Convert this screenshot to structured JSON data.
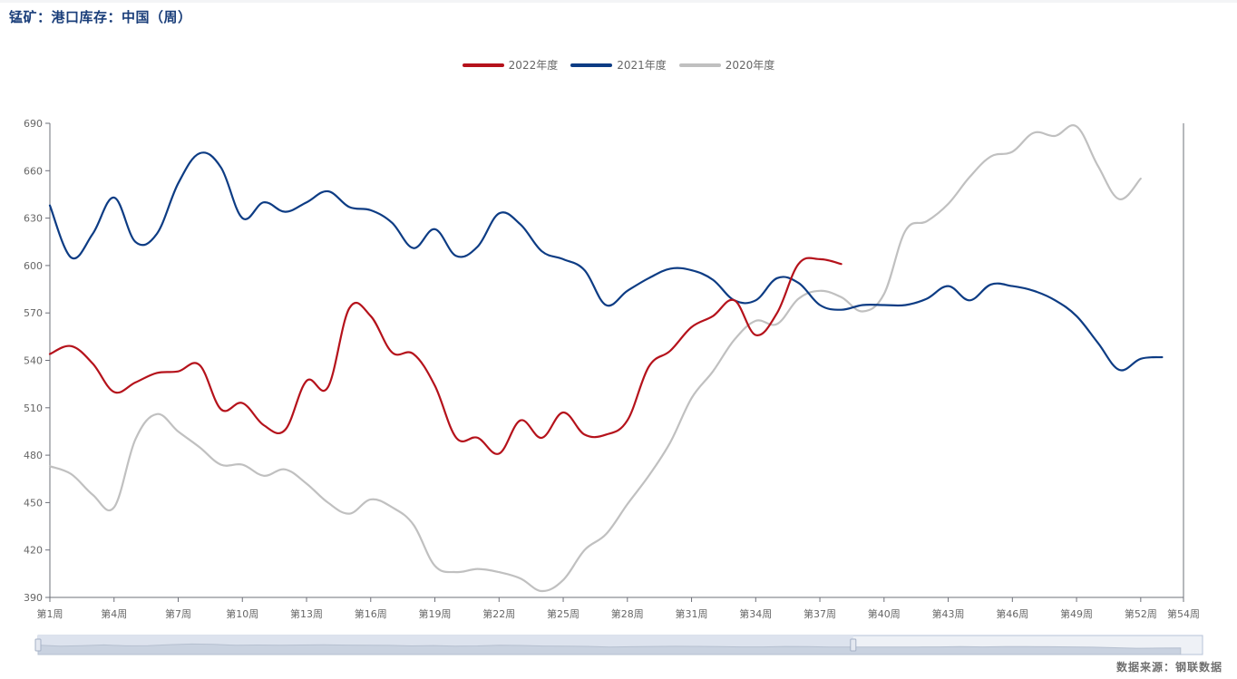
{
  "title": "锰矿：港口库存：中国（周）",
  "source": "数据来源：钢联数据",
  "colors": {
    "s2022": "#b5121b",
    "s2021": "#0d3c84",
    "s2020": "#c0c0c0",
    "axis": "#6e7079",
    "slider_bg": "#dde3ee",
    "slider_border": "#b7c3d8"
  },
  "legend": [
    {
      "name": "2022年度",
      "color": "#b5121b"
    },
    {
      "name": "2021年度",
      "color": "#0d3c84"
    },
    {
      "name": "2020年度",
      "color": "#c0c0c0"
    }
  ],
  "chart_data": {
    "type": "line",
    "x_range": [
      1,
      54
    ],
    "x_ticks": [
      {
        "x": 1,
        "label": "第1周"
      },
      {
        "x": 4,
        "label": "第4周"
      },
      {
        "x": 7,
        "label": "第7周"
      },
      {
        "x": 10,
        "label": "第10周"
      },
      {
        "x": 13,
        "label": "第13周"
      },
      {
        "x": 16,
        "label": "第16周"
      },
      {
        "x": 19,
        "label": "第19周"
      },
      {
        "x": 22,
        "label": "第22周"
      },
      {
        "x": 25,
        "label": "第25周"
      },
      {
        "x": 28,
        "label": "第28周"
      },
      {
        "x": 31,
        "label": "第31周"
      },
      {
        "x": 34,
        "label": "第34周"
      },
      {
        "x": 37,
        "label": "第37周"
      },
      {
        "x": 40,
        "label": "第40周"
      },
      {
        "x": 43,
        "label": "第43周"
      },
      {
        "x": 46,
        "label": "第46周"
      },
      {
        "x": 49,
        "label": "第49周"
      },
      {
        "x": 52,
        "label": "第52周"
      },
      {
        "x": 54,
        "label": "第54周"
      }
    ],
    "ylim": [
      390,
      690
    ],
    "y_ticks": [
      390,
      420,
      450,
      480,
      510,
      540,
      570,
      600,
      630,
      660,
      690
    ],
    "grid": false,
    "legend_position": "top-center",
    "series": [
      {
        "name": "2022年度",
        "color": "#b5121b",
        "x": [
          1,
          2,
          3,
          4,
          5,
          6,
          7,
          8,
          9,
          10,
          11,
          12,
          13,
          14,
          15,
          16,
          17,
          18,
          19,
          20,
          21,
          22,
          23,
          24,
          25,
          26,
          27,
          28,
          29,
          30,
          31,
          32,
          33,
          34,
          35,
          36,
          37,
          38
        ],
        "values": [
          544,
          549,
          538,
          520,
          526,
          532,
          533,
          537,
          509,
          513,
          499,
          496,
          527,
          523,
          573,
          568,
          545,
          544,
          524,
          491,
          491,
          481,
          502,
          491,
          507,
          493,
          493,
          502,
          536,
          546,
          561,
          568,
          578,
          556,
          570,
          601,
          604,
          601
        ]
      },
      {
        "name": "2021年度",
        "color": "#0d3c84",
        "x": [
          1,
          2,
          3,
          4,
          5,
          6,
          7,
          8,
          9,
          10,
          11,
          12,
          13,
          14,
          15,
          16,
          17,
          18,
          19,
          20,
          21,
          22,
          23,
          24,
          25,
          26,
          27,
          28,
          29,
          30,
          31,
          32,
          33,
          34,
          35,
          36,
          37,
          38,
          39,
          40,
          41,
          42,
          43,
          44,
          45,
          46,
          47,
          48,
          49,
          50,
          51,
          52,
          53
        ],
        "values": [
          638,
          605,
          620,
          643,
          615,
          620,
          652,
          671,
          662,
          630,
          640,
          634,
          640,
          647,
          637,
          635,
          627,
          611,
          623,
          606,
          612,
          633,
          626,
          609,
          604,
          597,
          575,
          584,
          592,
          598,
          597,
          591,
          578,
          578,
          592,
          589,
          575,
          572,
          575,
          575,
          575,
          579,
          587,
          578,
          588,
          587,
          584,
          578,
          568,
          551,
          534,
          541,
          542
        ]
      },
      {
        "name": "2020年度",
        "color": "#c0c0c0",
        "x": [
          1,
          2,
          3,
          4,
          5,
          6,
          7,
          8,
          9,
          10,
          11,
          12,
          13,
          14,
          15,
          16,
          17,
          18,
          19,
          20,
          21,
          22,
          23,
          24,
          25,
          26,
          27,
          28,
          29,
          30,
          31,
          32,
          33,
          34,
          35,
          36,
          37,
          38,
          39,
          40,
          41,
          42,
          43,
          44,
          45,
          46,
          47,
          48,
          49,
          50,
          51,
          52
        ],
        "values": [
          473,
          468,
          455,
          447,
          490,
          506,
          495,
          485,
          474,
          474,
          467,
          471,
          462,
          450,
          443,
          452,
          447,
          436,
          410,
          406,
          408,
          406,
          402,
          394,
          401,
          420,
          430,
          449,
          467,
          488,
          516,
          533,
          553,
          565,
          563,
          579,
          584,
          580,
          571,
          582,
          622,
          628,
          639,
          656,
          669,
          672,
          684,
          682,
          688,
          663,
          642,
          655
        ]
      }
    ]
  },
  "data_zoom": {
    "start_percent": 0,
    "end_percent": 70
  }
}
